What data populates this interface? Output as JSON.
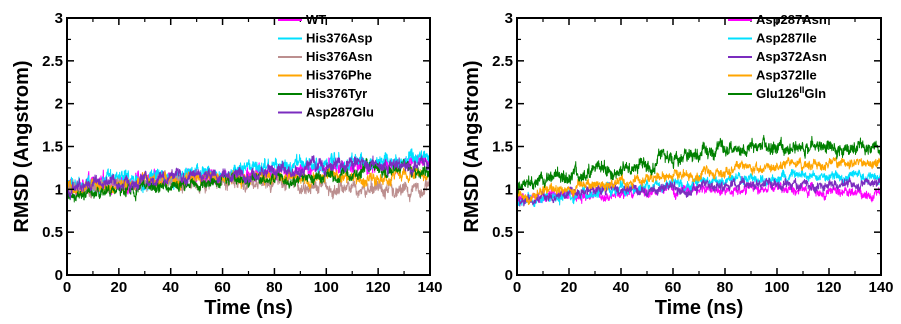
{
  "chart_data": [
    {
      "type": "line",
      "xlabel": "Time (ns)",
      "ylabel": "RMSD (Angstrom)",
      "xlim": [
        0,
        140
      ],
      "ylim": [
        0,
        3
      ],
      "xticks": [
        "0",
        "20",
        "40",
        "60",
        "80",
        "100",
        "120",
        "140"
      ],
      "yticks": [
        "0",
        "0.5",
        "1",
        "1.5",
        "2",
        "2.5",
        "3"
      ],
      "grid": false,
      "legend_position": "top-right",
      "series": [
        {
          "name": "WT",
          "color": "#ff00ff",
          "trend": [
            [
              0,
              1.02
            ],
            [
              20,
              1.08
            ],
            [
              40,
              1.12
            ],
            [
              60,
              1.18
            ],
            [
              80,
              1.2
            ],
            [
              100,
              1.25
            ],
            [
              120,
              1.28
            ],
            [
              140,
              1.3
            ]
          ],
          "noise": 0.07
        },
        {
          "name": "His376Asp",
          "color": "#00e0ff",
          "trend": [
            [
              0,
              1.05
            ],
            [
              20,
              1.1
            ],
            [
              40,
              1.15
            ],
            [
              60,
              1.2
            ],
            [
              80,
              1.24
            ],
            [
              100,
              1.3
            ],
            [
              120,
              1.33
            ],
            [
              140,
              1.35
            ]
          ],
          "noise": 0.07
        },
        {
          "name": "His376Asn",
          "color": "#bc8f8f",
          "trend": [
            [
              0,
              1.0
            ],
            [
              20,
              1.05
            ],
            [
              40,
              1.08
            ],
            [
              60,
              1.1
            ],
            [
              80,
              1.05
            ],
            [
              100,
              1.02
            ],
            [
              120,
              1.0
            ],
            [
              140,
              1.0
            ]
          ],
          "noise": 0.07
        },
        {
          "name": "His376Phe",
          "color": "#ffa500",
          "trend": [
            [
              0,
              1.0
            ],
            [
              20,
              1.05
            ],
            [
              40,
              1.1
            ],
            [
              60,
              1.12
            ],
            [
              80,
              1.13
            ],
            [
              100,
              1.15
            ],
            [
              120,
              1.12
            ],
            [
              140,
              1.15
            ]
          ],
          "noise": 0.06
        },
        {
          "name": "His376Tyr",
          "color": "#008000",
          "trend": [
            [
              0,
              0.9
            ],
            [
              20,
              0.98
            ],
            [
              40,
              1.05
            ],
            [
              60,
              1.1
            ],
            [
              80,
              1.12
            ],
            [
              100,
              1.15
            ],
            [
              120,
              1.2
            ],
            [
              140,
              1.22
            ]
          ],
          "noise": 0.06
        },
        {
          "name": "Asp287Glu",
          "color": "#7b2cbf",
          "trend": [
            [
              0,
              1.0
            ],
            [
              20,
              1.08
            ],
            [
              40,
              1.12
            ],
            [
              60,
              1.15
            ],
            [
              80,
              1.2
            ],
            [
              100,
              1.25
            ],
            [
              120,
              1.28
            ],
            [
              140,
              1.3
            ]
          ],
          "noise": 0.06
        }
      ]
    },
    {
      "type": "line",
      "xlabel": "Time (ns)",
      "ylabel": "RMSD (Angstrom)",
      "xlim": [
        0,
        140
      ],
      "ylim": [
        0,
        3
      ],
      "xticks": [
        "0",
        "20",
        "40",
        "60",
        "80",
        "100",
        "120",
        "140"
      ],
      "yticks": [
        "0",
        "0.5",
        "1",
        "1.5",
        "2",
        "2.5",
        "3"
      ],
      "grid": false,
      "legend_position": "top-right",
      "series": [
        {
          "name": "Asp287Asn",
          "color": "#ff00ff",
          "trend": [
            [
              0,
              0.88
            ],
            [
              20,
              0.92
            ],
            [
              40,
              0.95
            ],
            [
              60,
              0.98
            ],
            [
              80,
              1.0
            ],
            [
              100,
              1.0
            ],
            [
              120,
              0.98
            ],
            [
              140,
              0.95
            ]
          ],
          "noise": 0.05
        },
        {
          "name": "Asp287Ile",
          "color": "#00e0ff",
          "trend": [
            [
              0,
              0.85
            ],
            [
              20,
              0.92
            ],
            [
              40,
              1.0
            ],
            [
              60,
              1.05
            ],
            [
              80,
              1.1
            ],
            [
              100,
              1.12
            ],
            [
              120,
              1.15
            ],
            [
              140,
              1.15
            ]
          ],
          "noise": 0.05
        },
        {
          "name": "Asp372Asn",
          "color": "#7b2cbf",
          "trend": [
            [
              0,
              0.88
            ],
            [
              20,
              0.95
            ],
            [
              40,
              1.0
            ],
            [
              60,
              1.0
            ],
            [
              80,
              1.05
            ],
            [
              100,
              1.05
            ],
            [
              120,
              1.05
            ],
            [
              140,
              1.08
            ]
          ],
          "noise": 0.05
        },
        {
          "name": "Asp372Ile",
          "color": "#ffa500",
          "trend": [
            [
              0,
              0.92
            ],
            [
              20,
              1.0
            ],
            [
              40,
              1.08
            ],
            [
              60,
              1.15
            ],
            [
              80,
              1.22
            ],
            [
              100,
              1.28
            ],
            [
              120,
              1.3
            ],
            [
              140,
              1.32
            ]
          ],
          "noise": 0.05
        },
        {
          "name": "Glu126",
          "name_sup": "II",
          "name_suffix": "Gln",
          "color": "#008000",
          "trend": [
            [
              0,
              1.0
            ],
            [
              20,
              1.15
            ],
            [
              40,
              1.25
            ],
            [
              60,
              1.35
            ],
            [
              80,
              1.45
            ],
            [
              100,
              1.5
            ],
            [
              120,
              1.5
            ],
            [
              140,
              1.48
            ]
          ],
          "noise": 0.07
        }
      ]
    }
  ]
}
